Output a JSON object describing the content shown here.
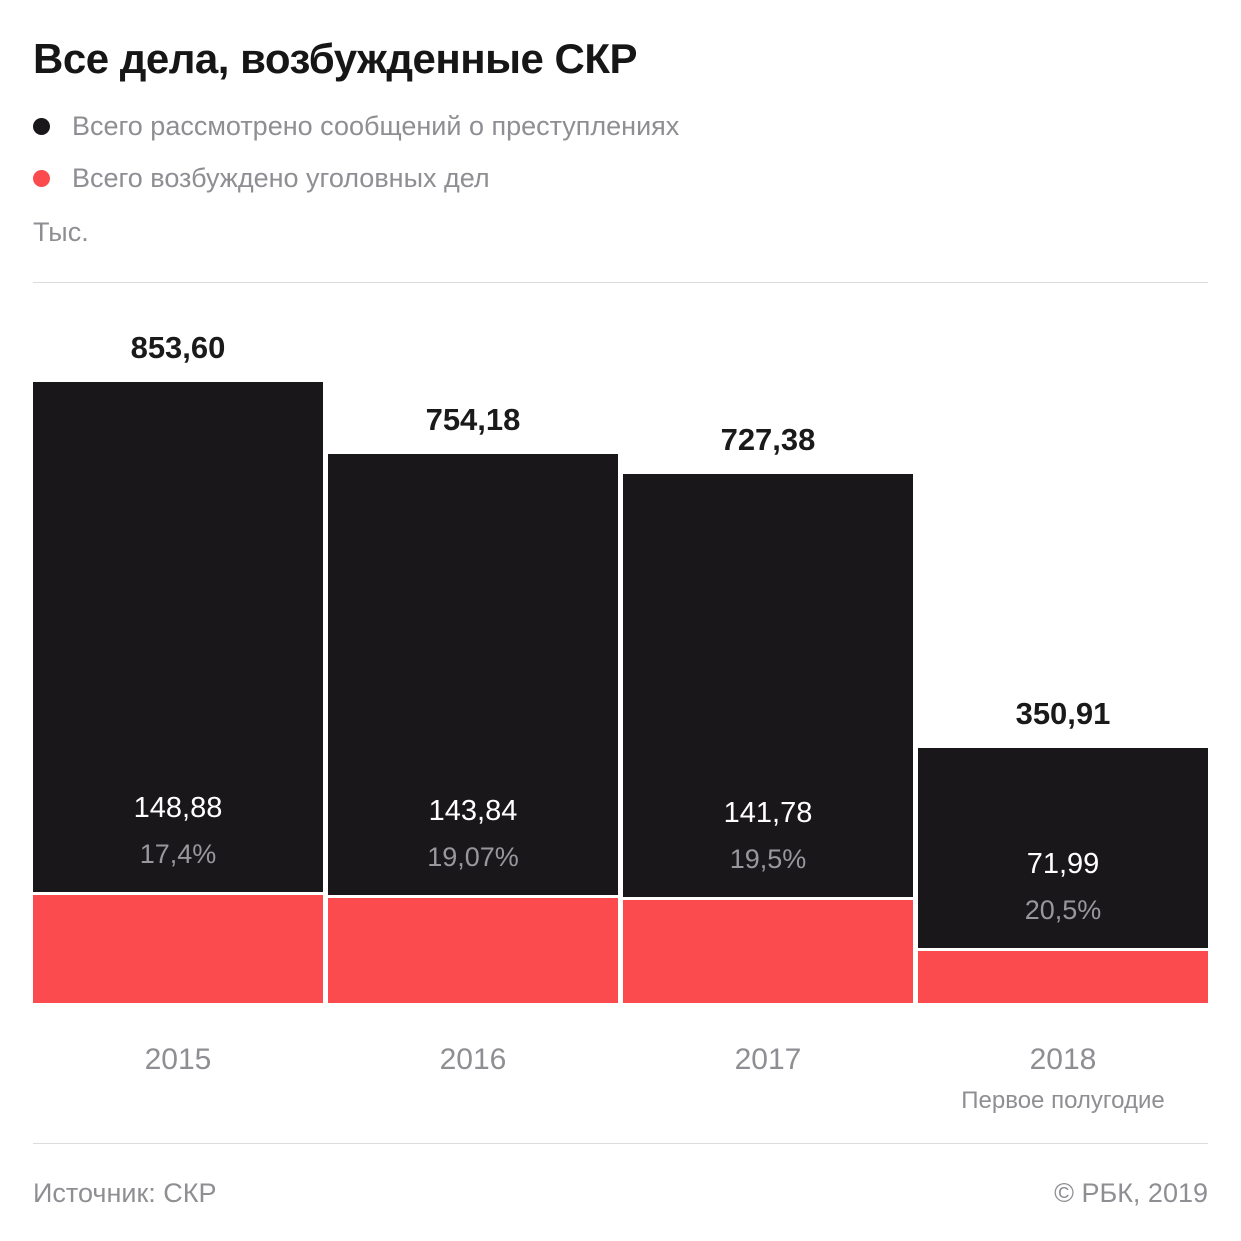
{
  "page": {
    "title": "Все дела, возбужденные СКР",
    "unit_label": "Тыс.",
    "footer": {
      "source": "Источник: СКР",
      "copyright": "© РБК, 2019"
    }
  },
  "legend": {
    "items": [
      {
        "label": "Всего рассмотрено сообщений о преступлениях",
        "color": "#19171a"
      },
      {
        "label": "Всего возбуждено уголовных дел",
        "color": "#fb4b4e"
      }
    ]
  },
  "colors": {
    "black_bar": "#19171a",
    "red_bar": "#fb4b4e",
    "gray_text": "#8e8e93",
    "title_text": "#161616",
    "divider": "#dcdcdc"
  },
  "chart_data": {
    "type": "bar",
    "title": "Все дела, возбужденные СКР",
    "unit": "Тыс.",
    "categories": [
      "2015",
      "2016",
      "2017",
      "2018"
    ],
    "category_note": "Первое полугодие (только для 2018)",
    "ylim": [
      0,
      900
    ],
    "grid": false,
    "legend_position": "top-left",
    "series": [
      {
        "name": "Всего рассмотрено сообщений о преступлениях",
        "color": "#19171a",
        "values": [
          853.6,
          754.18,
          727.38,
          350.91
        ]
      },
      {
        "name": "Всего возбуждено уголовных дел",
        "color": "#fb4b4e",
        "values": [
          148.88,
          143.84,
          141.78,
          71.99
        ]
      }
    ],
    "percent_share_labels": [
      "17,4%",
      "19,07%",
      "19,5%",
      "20,5%"
    ],
    "bars": [
      {
        "category": "2015",
        "note": "",
        "total": 853.6,
        "total_label": "853,60",
        "cases": 148.88,
        "cases_label": "148,88",
        "pct_label": "17,4%"
      },
      {
        "category": "2016",
        "note": "",
        "total": 754.18,
        "total_label": "754,18",
        "cases": 143.84,
        "cases_label": "143,84",
        "pct_label": "19,07%"
      },
      {
        "category": "2017",
        "note": "",
        "total": 727.38,
        "total_label": "727,38",
        "cases": 141.78,
        "cases_label": "141,78",
        "pct_label": "19,5%"
      },
      {
        "category": "2018",
        "note": "Первое полугодие",
        "total": 350.91,
        "total_label": "350,91",
        "cases": 71.99,
        "cases_label": "71,99",
        "pct_label": "20,5%"
      }
    ]
  }
}
